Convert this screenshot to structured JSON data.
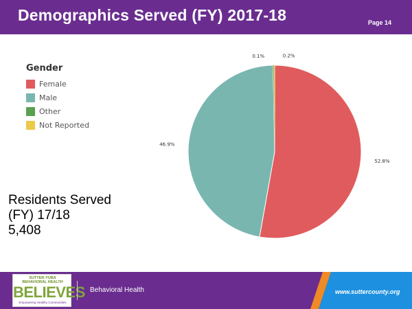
{
  "header": {
    "title": "Demographics Served (FY) 2017-18",
    "page": "Page 14"
  },
  "residents": {
    "line1": "Residents Served",
    "line2": "(FY) 17/18",
    "value": "5,408"
  },
  "footer": {
    "label": "Behavioral Health",
    "url": "www.suttercounty.org",
    "logo": {
      "line1": "SUTTER-YUBA",
      "line2": "BEHAVIORAL HEALTH",
      "main": "BELIEVES",
      "tagline": "Empowering Healthy Communities"
    },
    "colors": {
      "purple": "#6a2d8f",
      "orange": "#f08a24",
      "blue": "#1e90e0"
    }
  },
  "chart_data": {
    "type": "pie",
    "legend_title": "Gender",
    "legend_position": "top-left",
    "slices": [
      {
        "label": "Female",
        "value": 52.8,
        "display": "52.8%",
        "color": "#e05b5d"
      },
      {
        "label": "Male",
        "value": 46.9,
        "display": "46.9%",
        "color": "#7ab6b0"
      },
      {
        "label": "Other",
        "value": 0.1,
        "display": "0.1%",
        "color": "#59a14f"
      },
      {
        "label": "Not Reported",
        "value": 0.2,
        "display": "0.2%",
        "color": "#edc948"
      }
    ]
  }
}
